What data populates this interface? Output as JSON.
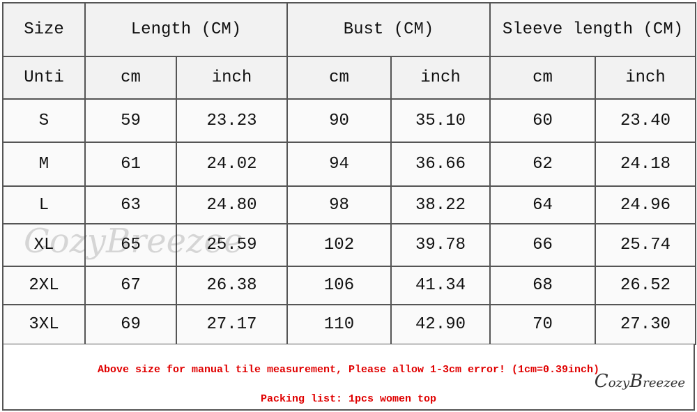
{
  "header": {
    "size": "Size",
    "length": "Length (CM)",
    "bust": "Bust (CM)",
    "sleeve": "Sleeve length (CM)"
  },
  "units": {
    "label": "Unti",
    "cm": "cm",
    "inch": "inch"
  },
  "rows": [
    {
      "size": "S",
      "length_cm": "59",
      "length_in": "23.23",
      "bust_cm": "90",
      "bust_in": "35.10",
      "sleeve_cm": "60",
      "sleeve_in": "23.40"
    },
    {
      "size": "M",
      "length_cm": "61",
      "length_in": "24.02",
      "bust_cm": "94",
      "bust_in": "36.66",
      "sleeve_cm": "62",
      "sleeve_in": "24.18"
    },
    {
      "size": "L",
      "length_cm": "63",
      "length_in": "24.80",
      "bust_cm": "98",
      "bust_in": "38.22",
      "sleeve_cm": "64",
      "sleeve_in": "24.96"
    },
    {
      "size": "XL",
      "length_cm": "65",
      "length_in": "25.59",
      "bust_cm": "102",
      "bust_in": "39.78",
      "sleeve_cm": "66",
      "sleeve_in": "25.74"
    },
    {
      "size": "2XL",
      "length_cm": "67",
      "length_in": "26.38",
      "bust_cm": "106",
      "bust_in": "41.34",
      "sleeve_cm": "68",
      "sleeve_in": "26.52"
    },
    {
      "size": "3XL",
      "length_cm": "69",
      "length_in": "27.17",
      "bust_cm": "110",
      "bust_in": "42.90",
      "sleeve_cm": "70",
      "sleeve_in": "27.30"
    }
  ],
  "footer": {
    "note": "Above size for manual tile measurement, Please allow 1-3cm error!  (1cm=0.39inch)",
    "packing": "Packing list: 1pcs women top"
  },
  "watermark": "CozyBreezee",
  "colors": {
    "note": "#e00000",
    "border": "#555555"
  }
}
